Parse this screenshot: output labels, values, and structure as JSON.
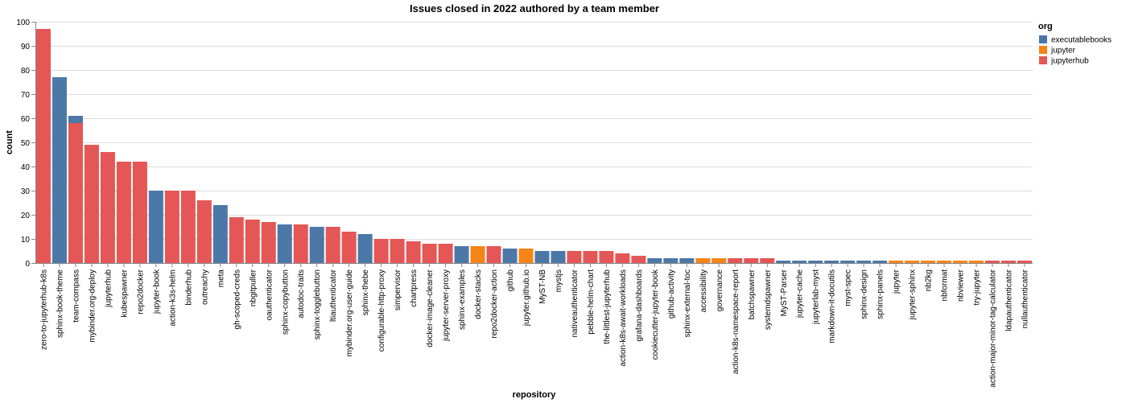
{
  "chart_data": {
    "type": "bar",
    "stacked": true,
    "title": "Issues closed in 2022 authored by a team member",
    "xlabel": "repository",
    "ylabel": "count",
    "ylim": [
      0,
      100
    ],
    "yticks": [
      0,
      10,
      20,
      30,
      40,
      50,
      60,
      70,
      80,
      90,
      100
    ],
    "grid": true,
    "legend": {
      "title": "org",
      "position": "top-right",
      "entries": [
        "executablebooks",
        "jupyter",
        "jupyterhub"
      ]
    },
    "colors": {
      "executablebooks": "#4c78a8",
      "jupyter": "#f58518",
      "jupyterhub": "#e45756"
    },
    "bars": [
      {
        "repository": "zero-to-jupyterhub-k8s",
        "segments": [
          {
            "org": "jupyterhub",
            "value": 97
          }
        ]
      },
      {
        "repository": "sphinx-book-theme",
        "segments": [
          {
            "org": "executablebooks",
            "value": 77
          }
        ]
      },
      {
        "repository": "team-compass",
        "segments": [
          {
            "org": "jupyterhub",
            "value": 58
          },
          {
            "org": "executablebooks",
            "value": 3
          }
        ]
      },
      {
        "repository": "mybinder.org-deploy",
        "segments": [
          {
            "org": "jupyterhub",
            "value": 49
          }
        ]
      },
      {
        "repository": "jupyterhub",
        "segments": [
          {
            "org": "jupyterhub",
            "value": 46
          }
        ]
      },
      {
        "repository": "kubespawner",
        "segments": [
          {
            "org": "jupyterhub",
            "value": 42
          }
        ]
      },
      {
        "repository": "repo2docker",
        "segments": [
          {
            "org": "jupyterhub",
            "value": 42
          }
        ]
      },
      {
        "repository": "jupyter-book",
        "segments": [
          {
            "org": "executablebooks",
            "value": 30
          }
        ]
      },
      {
        "repository": "action-k3s-helm",
        "segments": [
          {
            "org": "jupyterhub",
            "value": 30
          }
        ]
      },
      {
        "repository": "binderhub",
        "segments": [
          {
            "org": "jupyterhub",
            "value": 30
          }
        ]
      },
      {
        "repository": "outreachy",
        "segments": [
          {
            "org": "jupyterhub",
            "value": 26
          }
        ]
      },
      {
        "repository": "meta",
        "segments": [
          {
            "org": "executablebooks",
            "value": 24
          }
        ]
      },
      {
        "repository": "gh-scoped-creds",
        "segments": [
          {
            "org": "jupyterhub",
            "value": 19
          }
        ]
      },
      {
        "repository": "nbgitpuller",
        "segments": [
          {
            "org": "jupyterhub",
            "value": 18
          }
        ]
      },
      {
        "repository": "oauthenticator",
        "segments": [
          {
            "org": "jupyterhub",
            "value": 17
          }
        ]
      },
      {
        "repository": "sphinx-copybutton",
        "segments": [
          {
            "org": "executablebooks",
            "value": 16
          }
        ]
      },
      {
        "repository": "autodoc-traits",
        "segments": [
          {
            "org": "jupyterhub",
            "value": 16
          }
        ]
      },
      {
        "repository": "sphinx-togglebutton",
        "segments": [
          {
            "org": "executablebooks",
            "value": 15
          }
        ]
      },
      {
        "repository": "ltiauthenticator",
        "segments": [
          {
            "org": "jupyterhub",
            "value": 15
          }
        ]
      },
      {
        "repository": "mybinder.org-user-guide",
        "segments": [
          {
            "org": "jupyterhub",
            "value": 13
          }
        ]
      },
      {
        "repository": "sphinx-thebe",
        "segments": [
          {
            "org": "executablebooks",
            "value": 12
          }
        ]
      },
      {
        "repository": "configurable-http-proxy",
        "segments": [
          {
            "org": "jupyterhub",
            "value": 10
          }
        ]
      },
      {
        "repository": "simpervisor",
        "segments": [
          {
            "org": "jupyterhub",
            "value": 10
          }
        ]
      },
      {
        "repository": "chartpress",
        "segments": [
          {
            "org": "jupyterhub",
            "value": 9
          }
        ]
      },
      {
        "repository": "docker-image-cleaner",
        "segments": [
          {
            "org": "jupyterhub",
            "value": 8
          }
        ]
      },
      {
        "repository": "jupyter-server-proxy",
        "segments": [
          {
            "org": "jupyterhub",
            "value": 8
          }
        ]
      },
      {
        "repository": "sphinx-examples",
        "segments": [
          {
            "org": "executablebooks",
            "value": 7
          }
        ]
      },
      {
        "repository": "docker-stacks",
        "segments": [
          {
            "org": "jupyter",
            "value": 7
          }
        ]
      },
      {
        "repository": "repo2docker-action",
        "segments": [
          {
            "org": "jupyterhub",
            "value": 7
          }
        ]
      },
      {
        "repository": "github",
        "segments": [
          {
            "org": "executablebooks",
            "value": 6
          }
        ]
      },
      {
        "repository": "jupyter.github.io",
        "segments": [
          {
            "org": "jupyter",
            "value": 6
          }
        ]
      },
      {
        "repository": "MyST-NB",
        "segments": [
          {
            "org": "executablebooks",
            "value": 5
          }
        ]
      },
      {
        "repository": "mystjs",
        "segments": [
          {
            "org": "executablebooks",
            "value": 5
          }
        ]
      },
      {
        "repository": "nativeauthenticator",
        "segments": [
          {
            "org": "jupyterhub",
            "value": 5
          }
        ]
      },
      {
        "repository": "pebble-helm-chart",
        "segments": [
          {
            "org": "jupyterhub",
            "value": 5
          }
        ]
      },
      {
        "repository": "the-littlest-jupyterhub",
        "segments": [
          {
            "org": "jupyterhub",
            "value": 5
          }
        ]
      },
      {
        "repository": "action-k8s-await-workloads",
        "segments": [
          {
            "org": "jupyterhub",
            "value": 4
          }
        ]
      },
      {
        "repository": "grafana-dashboards",
        "segments": [
          {
            "org": "jupyterhub",
            "value": 3
          }
        ]
      },
      {
        "repository": "cookiecutter-jupyter-book",
        "segments": [
          {
            "org": "executablebooks",
            "value": 2
          }
        ]
      },
      {
        "repository": "github-activity",
        "segments": [
          {
            "org": "executablebooks",
            "value": 2
          }
        ]
      },
      {
        "repository": "sphinx-external-toc",
        "segments": [
          {
            "org": "executablebooks",
            "value": 2
          }
        ]
      },
      {
        "repository": "accessibility",
        "segments": [
          {
            "org": "jupyter",
            "value": 2
          }
        ]
      },
      {
        "repository": "governance",
        "segments": [
          {
            "org": "jupyter",
            "value": 2
          }
        ]
      },
      {
        "repository": "action-k8s-namespace-report",
        "segments": [
          {
            "org": "jupyterhub",
            "value": 2
          }
        ]
      },
      {
        "repository": "batchspawner",
        "segments": [
          {
            "org": "jupyterhub",
            "value": 2
          }
        ]
      },
      {
        "repository": "systemdspawner",
        "segments": [
          {
            "org": "jupyterhub",
            "value": 2
          }
        ]
      },
      {
        "repository": "MyST-Parser",
        "segments": [
          {
            "org": "executablebooks",
            "value": 1
          }
        ]
      },
      {
        "repository": "jupyter-cache",
        "segments": [
          {
            "org": "executablebooks",
            "value": 1
          }
        ]
      },
      {
        "repository": "jupyterlab-myst",
        "segments": [
          {
            "org": "executablebooks",
            "value": 1
          }
        ]
      },
      {
        "repository": "markdown-it-docutils",
        "segments": [
          {
            "org": "executablebooks",
            "value": 1
          }
        ]
      },
      {
        "repository": "myst-spec",
        "segments": [
          {
            "org": "executablebooks",
            "value": 1
          }
        ]
      },
      {
        "repository": "sphinx-design",
        "segments": [
          {
            "org": "executablebooks",
            "value": 1
          }
        ]
      },
      {
        "repository": "sphinx-panels",
        "segments": [
          {
            "org": "executablebooks",
            "value": 1
          }
        ]
      },
      {
        "repository": "jupyter",
        "segments": [
          {
            "org": "jupyter",
            "value": 1
          }
        ]
      },
      {
        "repository": "jupyter-sphinx",
        "segments": [
          {
            "org": "jupyter",
            "value": 1
          }
        ]
      },
      {
        "repository": "nb2kg",
        "segments": [
          {
            "org": "jupyter",
            "value": 1
          }
        ]
      },
      {
        "repository": "nbformat",
        "segments": [
          {
            "org": "jupyter",
            "value": 1
          }
        ]
      },
      {
        "repository": "nbviewer",
        "segments": [
          {
            "org": "jupyter",
            "value": 1
          }
        ]
      },
      {
        "repository": "try-jupyter",
        "segments": [
          {
            "org": "jupyter",
            "value": 1
          }
        ]
      },
      {
        "repository": "action-major-minor-tag-calculator",
        "segments": [
          {
            "org": "jupyterhub",
            "value": 1
          }
        ]
      },
      {
        "repository": "ldapauthenticator",
        "segments": [
          {
            "org": "jupyterhub",
            "value": 1
          }
        ]
      },
      {
        "repository": "nullauthenticator",
        "segments": [
          {
            "org": "jupyterhub",
            "value": 1
          }
        ]
      }
    ]
  }
}
